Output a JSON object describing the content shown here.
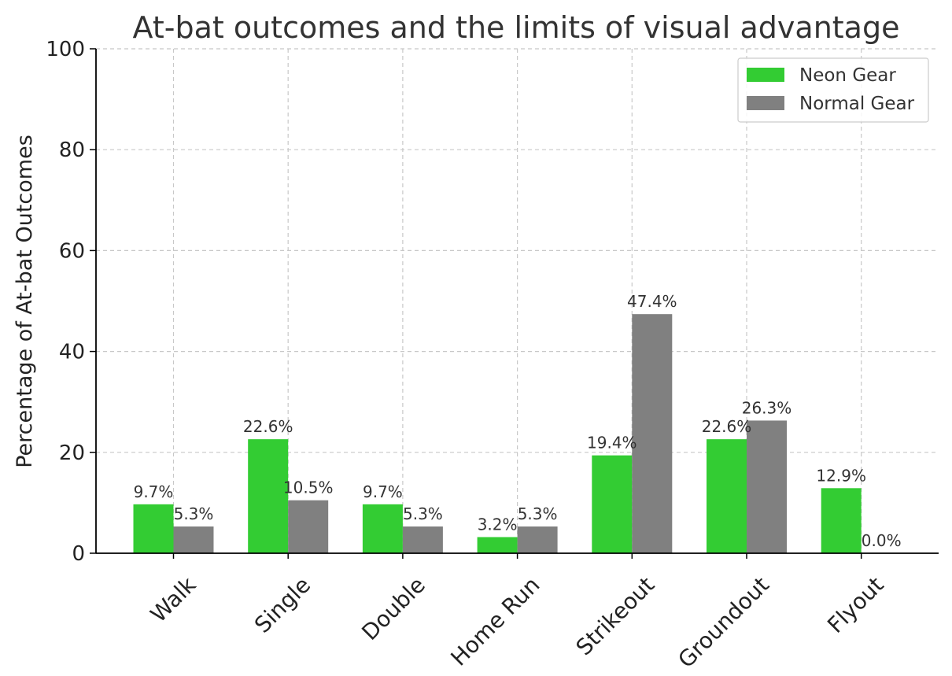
{
  "chart_data": {
    "type": "bar",
    "title": "At-bat outcomes and the limits of visual advantage",
    "xlabel": "",
    "ylabel": "Percentage of At-bat Outcomes",
    "ylim": [
      0,
      100
    ],
    "yticks": [
      0,
      20,
      40,
      60,
      80,
      100
    ],
    "grid": true,
    "legend_position": "top-right",
    "categories": [
      "Walk",
      "Single",
      "Double",
      "Home Run",
      "Strikeout",
      "Groundout",
      "Flyout"
    ],
    "series": [
      {
        "name": "Neon Gear",
        "color": "#33cc33",
        "values": [
          9.7,
          22.6,
          9.7,
          3.2,
          19.4,
          22.6,
          12.9
        ],
        "labels": [
          "9.7%",
          "22.6%",
          "9.7%",
          "3.2%",
          "19.4%",
          "22.6%",
          "12.9%"
        ]
      },
      {
        "name": "Normal Gear",
        "color": "#808080",
        "values": [
          5.3,
          10.5,
          5.3,
          5.3,
          47.4,
          26.3,
          0.0
        ],
        "labels": [
          "5.3%",
          "10.5%",
          "5.3%",
          "5.3%",
          "47.4%",
          "26.3%",
          "0.0%"
        ]
      }
    ]
  }
}
